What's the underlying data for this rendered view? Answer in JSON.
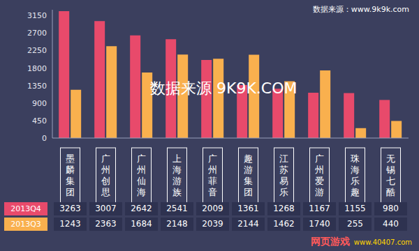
{
  "chart_data": {
    "type": "bar",
    "categories": [
      "墨麟集团",
      "广州创思",
      "广州仙海",
      "上海游族",
      "广州菲音",
      "趣游集团",
      "江苏易乐",
      "广州爱游",
      "珠海乐趣",
      "无锡七酷"
    ],
    "series": [
      {
        "name": "2013Q4",
        "color": "#e84a6b",
        "values": [
          3263,
          3007,
          2642,
          2541,
          2009,
          1361,
          1268,
          1167,
          1155,
          980
        ]
      },
      {
        "name": "2013Q3",
        "color": "#f9b04e",
        "values": [
          1243,
          2363,
          1684,
          2148,
          2039,
          2144,
          1462,
          1740,
          255,
          440
        ]
      }
    ],
    "ylim": [
      0,
      3300
    ],
    "yticks": [
      0,
      450,
      900,
      1350,
      1800,
      2250,
      2700,
      3150
    ],
    "grid": false,
    "annotations": [
      "数据来源：www.9k9k.com",
      "数据来源 9K9K.COM",
      "网页游戏",
      "www.40407.com"
    ]
  }
}
